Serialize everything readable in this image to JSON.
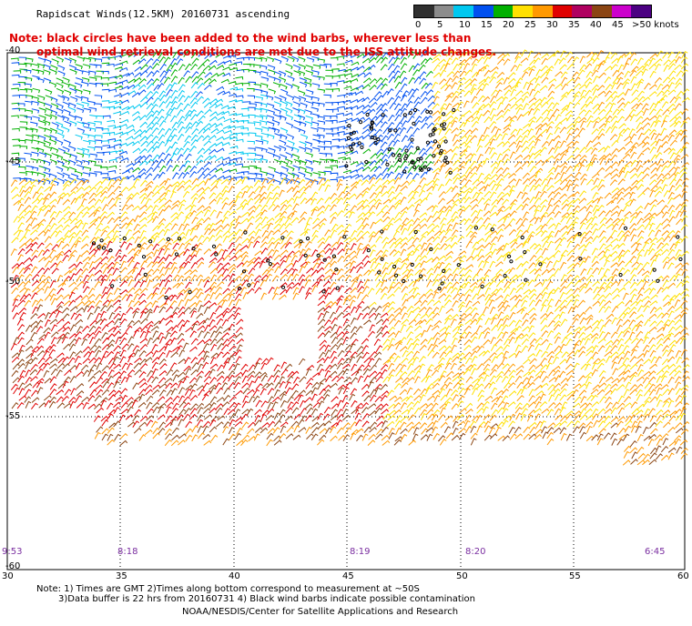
{
  "title": "Rapidscat Winds(12.5KM) 20160731 ascending",
  "notes": [
    "Note: black circles have been added to the wind barbs, wherever less than",
    "optimal wind retrieval conditions are met due to the ISS attitude changes."
  ],
  "legend": {
    "labels": [
      "0",
      "5",
      "10",
      "15",
      "20",
      "25",
      "30",
      "35",
      "40",
      "45",
      ">50 knots"
    ],
    "colors": [
      "#303030",
      "#8c8c8c",
      "#00c8f0",
      "#0050f0",
      "#00b000",
      "#ffe000",
      "#ff9900",
      "#e00000",
      "#b00060",
      "#8b4513",
      "#cc00cc",
      "#4b0082"
    ]
  },
  "lat_labels": [
    "-40",
    "-45",
    "-50",
    "-55",
    "-60"
  ],
  "lon_labels": [
    "30",
    "35",
    "40",
    "45",
    "50",
    "55",
    "60"
  ],
  "time_labels": [
    "9:53",
    "8:18",
    "8:19",
    "8:20",
    "6:45"
  ],
  "footer": [
    "Note: 1) Times are GMT 2)Times along bottom correspond to measurement at ~50S",
    "3)Data buffer is 22 hrs from 20160731 4) Black wind barbs indicate possible contamination",
    "NOAA/NESDIS/Center for Satellite Applications and Research"
  ]
}
